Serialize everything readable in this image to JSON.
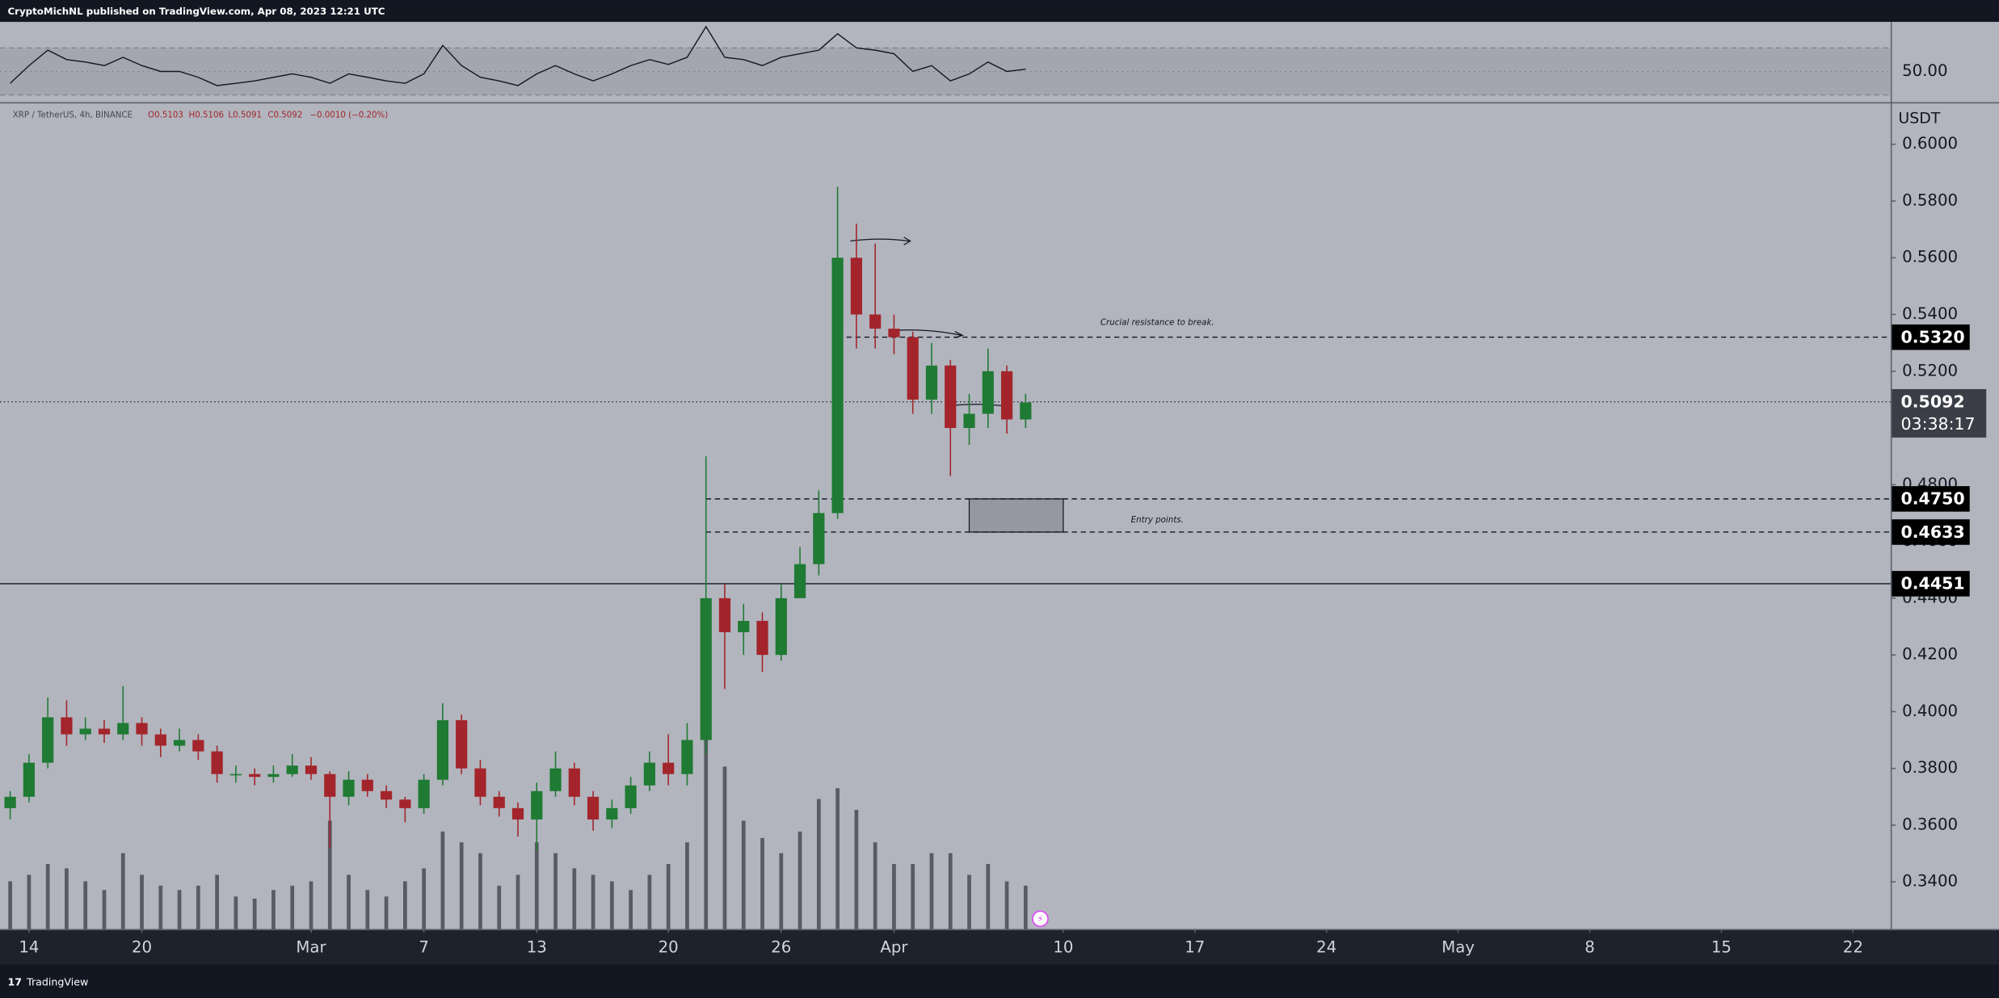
{
  "header": {
    "published": "CryptoMichNL published on TradingView.com, Apr 08, 2023 12:21 UTC"
  },
  "footer": {
    "brand": "TradingView"
  },
  "chart_data": {
    "type": "candlestick",
    "symbol": "XRP / TetherUS, 4h, BINANCE",
    "ohlc_legend": [
      "O0.5103",
      "H0.5106",
      "L0.5091",
      "C0.5092",
      "−0.0010 (−0.20%)"
    ],
    "axis_unit": "USDT",
    "x": [
      "Feb 13",
      "Feb 14",
      "Feb 15",
      "Feb 16",
      "Feb 17",
      "Feb 18",
      "Feb 19",
      "Feb 20",
      "Feb 21",
      "Feb 22",
      "Feb 23",
      "Feb 24",
      "Feb 25",
      "Feb 26",
      "Feb 27",
      "Feb 28",
      "Mar 1",
      "Mar 2",
      "Mar 3",
      "Mar 4",
      "Mar 5",
      "Mar 6",
      "Mar 7",
      "Mar 8",
      "Mar 9",
      "Mar 10",
      "Mar 11",
      "Mar 12",
      "Mar 13",
      "Mar 14",
      "Mar 15",
      "Mar 16",
      "Mar 17",
      "Mar 18",
      "Mar 19",
      "Mar 20",
      "Mar 21",
      "Mar 22",
      "Mar 23",
      "Mar 24",
      "Mar 25",
      "Mar 26",
      "Mar 27",
      "Mar 28",
      "Mar 29",
      "Mar 30",
      "Mar 31",
      "Apr 1",
      "Apr 2",
      "Apr 3",
      "Apr 4",
      "Apr 5",
      "Apr 6",
      "Apr 7",
      "Apr 8"
    ],
    "open": [
      0.366,
      0.37,
      0.382,
      0.398,
      0.392,
      0.394,
      0.392,
      0.396,
      0.392,
      0.388,
      0.39,
      0.386,
      0.378,
      0.378,
      0.377,
      0.378,
      0.381,
      0.378,
      0.37,
      0.376,
      0.372,
      0.369,
      0.366,
      0.376,
      0.397,
      0.38,
      0.37,
      0.366,
      0.362,
      0.372,
      0.38,
      0.37,
      0.362,
      0.366,
      0.374,
      0.382,
      0.378,
      0.39,
      0.44,
      0.428,
      0.432,
      0.42,
      0.44,
      0.452,
      0.47,
      0.56,
      0.54,
      0.535,
      0.532,
      0.51,
      0.522,
      0.5,
      0.505,
      0.52,
      0.503
    ],
    "high": [
      0.372,
      0.385,
      0.405,
      0.404,
      0.398,
      0.397,
      0.409,
      0.398,
      0.394,
      0.394,
      0.392,
      0.388,
      0.381,
      0.38,
      0.381,
      0.385,
      0.384,
      0.379,
      0.379,
      0.378,
      0.374,
      0.37,
      0.378,
      0.403,
      0.399,
      0.383,
      0.372,
      0.368,
      0.375,
      0.386,
      0.382,
      0.372,
      0.369,
      0.377,
      0.386,
      0.392,
      0.396,
      0.49,
      0.445,
      0.438,
      0.435,
      0.445,
      0.458,
      0.478,
      0.585,
      0.572,
      0.565,
      0.54,
      0.534,
      0.53,
      0.524,
      0.512,
      0.528,
      0.522,
      0.512
    ],
    "low": [
      0.362,
      0.368,
      0.38,
      0.388,
      0.39,
      0.389,
      0.39,
      0.388,
      0.384,
      0.386,
      0.383,
      0.375,
      0.375,
      0.374,
      0.375,
      0.377,
      0.376,
      0.352,
      0.367,
      0.37,
      0.366,
      0.361,
      0.364,
      0.374,
      0.378,
      0.367,
      0.363,
      0.356,
      0.351,
      0.37,
      0.367,
      0.358,
      0.359,
      0.364,
      0.372,
      0.374,
      0.374,
      0.385,
      0.408,
      0.42,
      0.414,
      0.418,
      0.44,
      0.448,
      0.468,
      0.528,
      0.528,
      0.526,
      0.505,
      0.505,
      0.483,
      0.494,
      0.5,
      0.498,
      0.5
    ],
    "close": [
      0.37,
      0.382,
      0.398,
      0.392,
      0.394,
      0.392,
      0.396,
      0.392,
      0.388,
      0.39,
      0.386,
      0.378,
      0.378,
      0.377,
      0.378,
      0.381,
      0.378,
      0.37,
      0.376,
      0.372,
      0.369,
      0.366,
      0.376,
      0.397,
      0.38,
      0.37,
      0.366,
      0.362,
      0.372,
      0.38,
      0.37,
      0.362,
      0.366,
      0.374,
      0.382,
      0.378,
      0.39,
      0.44,
      0.428,
      0.432,
      0.42,
      0.44,
      0.452,
      0.47,
      0.56,
      0.54,
      0.535,
      0.532,
      0.51,
      0.522,
      0.5,
      0.505,
      0.52,
      0.503,
      0.509
    ],
    "up_color": "#1f7a33",
    "down_color": "#a3252b",
    "volume": [
      22,
      25,
      30,
      28,
      22,
      18,
      35,
      25,
      20,
      18,
      20,
      25,
      15,
      14,
      18,
      20,
      22,
      50,
      25,
      18,
      15,
      22,
      28,
      45,
      40,
      35,
      20,
      25,
      40,
      35,
      28,
      25,
      22,
      18,
      25,
      30,
      40,
      100,
      75,
      50,
      42,
      35,
      45,
      60,
      65,
      55,
      40,
      30,
      30,
      35,
      35,
      25,
      30,
      22,
      20
    ],
    "volume_ylim": [
      0,
      100
    ],
    "volume_color": "#3b3e46",
    "rsi": {
      "values": [
        40,
        55,
        68,
        60,
        58,
        55,
        62,
        55,
        50,
        50,
        45,
        38,
        40,
        42,
        45,
        48,
        45,
        40,
        48,
        45,
        42,
        40,
        48,
        72,
        55,
        45,
        42,
        38,
        48,
        55,
        48,
        42,
        48,
        55,
        60,
        56,
        62,
        88,
        62,
        60,
        55,
        62,
        65,
        68,
        82,
        70,
        68,
        65,
        50,
        55,
        42,
        48,
        58,
        50,
        52
      ],
      "ylim": [
        24,
        92
      ],
      "yticks": [
        {
          "value": 50,
          "label": "50.00"
        }
      ],
      "bands": [
        30,
        70
      ],
      "color": "#131722"
    },
    "xlim": [
      "Feb 13",
      "May 24"
    ],
    "xticks": [
      {
        "value": "Feb 14",
        "label": "14"
      },
      {
        "value": "Feb 20",
        "label": "20"
      },
      {
        "value": "Mar 1",
        "label": "Mar"
      },
      {
        "value": "Mar 7",
        "label": "7"
      },
      {
        "value": "Mar 13",
        "label": "13"
      },
      {
        "value": "Mar 20",
        "label": "20"
      },
      {
        "value": "Mar 26",
        "label": "26"
      },
      {
        "value": "Apr 1",
        "label": "Apr"
      },
      {
        "value": "Apr 10",
        "label": "10"
      },
      {
        "value": "Apr 17",
        "label": "17"
      },
      {
        "value": "Apr 24",
        "label": "24"
      },
      {
        "value": "May 1",
        "label": "May"
      },
      {
        "value": "May 8",
        "label": "8"
      },
      {
        "value": "May 15",
        "label": "15"
      },
      {
        "value": "May 22",
        "label": "22"
      }
    ],
    "ylim": [
      0.3234,
      0.6144
    ],
    "yticks": [
      {
        "value": 0.34,
        "label": "0.3400"
      },
      {
        "value": 0.36,
        "label": "0.3600"
      },
      {
        "value": 0.38,
        "label": "0.3800"
      },
      {
        "value": 0.4,
        "label": "0.4000"
      },
      {
        "value": 0.42,
        "label": "0.4200"
      },
      {
        "value": 0.44,
        "label": "0.4400"
      },
      {
        "value": 0.46,
        "label": "0.4600"
      },
      {
        "value": 0.48,
        "label": "0.4800"
      },
      {
        "value": 0.5,
        "label": "0.5000"
      },
      {
        "value": 0.52,
        "label": "0.5200"
      },
      {
        "value": 0.54,
        "label": "0.5400"
      },
      {
        "value": 0.56,
        "label": "0.5600"
      },
      {
        "value": 0.58,
        "label": "0.5800"
      },
      {
        "value": 0.6,
        "label": "0.6000"
      }
    ],
    "levels": [
      {
        "value": 0.532,
        "label": "0.5320",
        "style": "dashed",
        "from": "Mar 29"
      },
      {
        "value": 0.475,
        "label": "0.4750",
        "style": "dashed",
        "from": "Mar 22"
      },
      {
        "value": 0.4633,
        "label": "0.4633",
        "style": "dashed",
        "from": "Mar 22"
      },
      {
        "value": 0.4451,
        "label": "0.4451",
        "style": "solid"
      }
    ],
    "current_price": {
      "value": 0.5092,
      "label": "0.5092",
      "countdown": "03:38:17"
    },
    "zone": {
      "from": "Apr 5",
      "to": "Apr 10",
      "top": 0.475,
      "bottom": 0.4633
    },
    "annotations": [
      {
        "text": "Crucial resistance to break.",
        "x": "Apr 15",
        "y": 0.5371
      },
      {
        "text": "Entry points.",
        "x": "Apr 15",
        "y": 0.4675
      }
    ]
  }
}
